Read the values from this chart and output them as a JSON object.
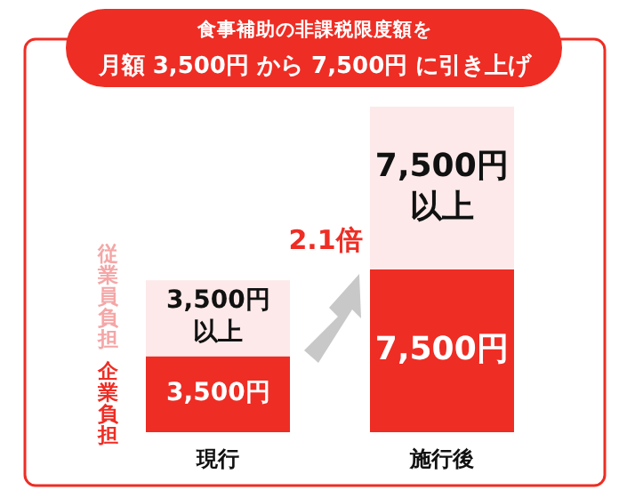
{
  "chart_data": {
    "type": "bar",
    "stacked": true,
    "title": "食事補助の非課税限度額を",
    "subtitle": "月額 3,500円 から 7,500円 に引き上げ",
    "categories": [
      "現行",
      "施行後"
    ],
    "series": [
      {
        "name": "企業負担",
        "color": "#ee2d24",
        "values": [
          3500,
          7500
        ],
        "value_labels": [
          "3,500円",
          "7,500円"
        ]
      },
      {
        "name": "従業員負担",
        "color": "#fde9e9",
        "values": [
          3500,
          7500
        ],
        "value_labels": [
          "3,500円以上",
          "7,500円以上"
        ]
      }
    ],
    "annotations": [
      "2.1倍"
    ]
  }
}
